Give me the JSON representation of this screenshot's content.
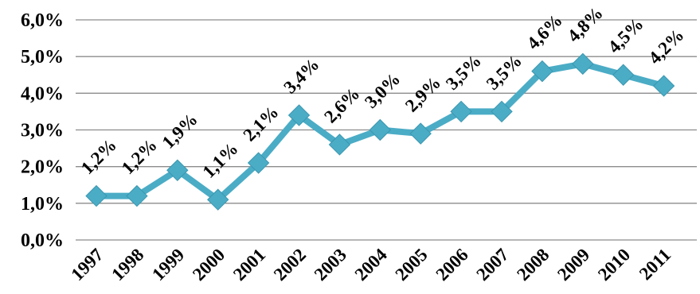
{
  "chart_data": {
    "type": "line",
    "title": "",
    "xlabel": "",
    "ylabel": "",
    "categories": [
      "1997",
      "1998",
      "1999",
      "2000",
      "2001",
      "2002",
      "2003",
      "2004",
      "2005",
      "2006",
      "2007",
      "2008",
      "2009",
      "2010",
      "2011"
    ],
    "series": [
      {
        "values": [
          1.2,
          1.2,
          1.9,
          1.1,
          2.1,
          3.4,
          2.6,
          3.0,
          2.9,
          3.5,
          3.5,
          4.6,
          4.8,
          4.5,
          4.2
        ],
        "labels": [
          "1,2%",
          "1,2%",
          "1,9%",
          "1,1%",
          "2,1%",
          "3,4%",
          "2,6%",
          "3,0%",
          "2,9%",
          "3,5%",
          "3,5%",
          "4,6%",
          "4,8%",
          "4,5%",
          "4,2%"
        ],
        "color": "#4bacc6",
        "marker": "diamond"
      }
    ],
    "ylim": [
      0,
      6
    ],
    "yticks": [
      0,
      1,
      2,
      3,
      4,
      5,
      6
    ],
    "ytick_labels": [
      "0,0%",
      "1,0%",
      "2,0%",
      "3,0%",
      "4,0%",
      "5,0%",
      "6,0%"
    ],
    "grid": true,
    "legend": "none",
    "gridline_color": "#8c8c8c"
  }
}
